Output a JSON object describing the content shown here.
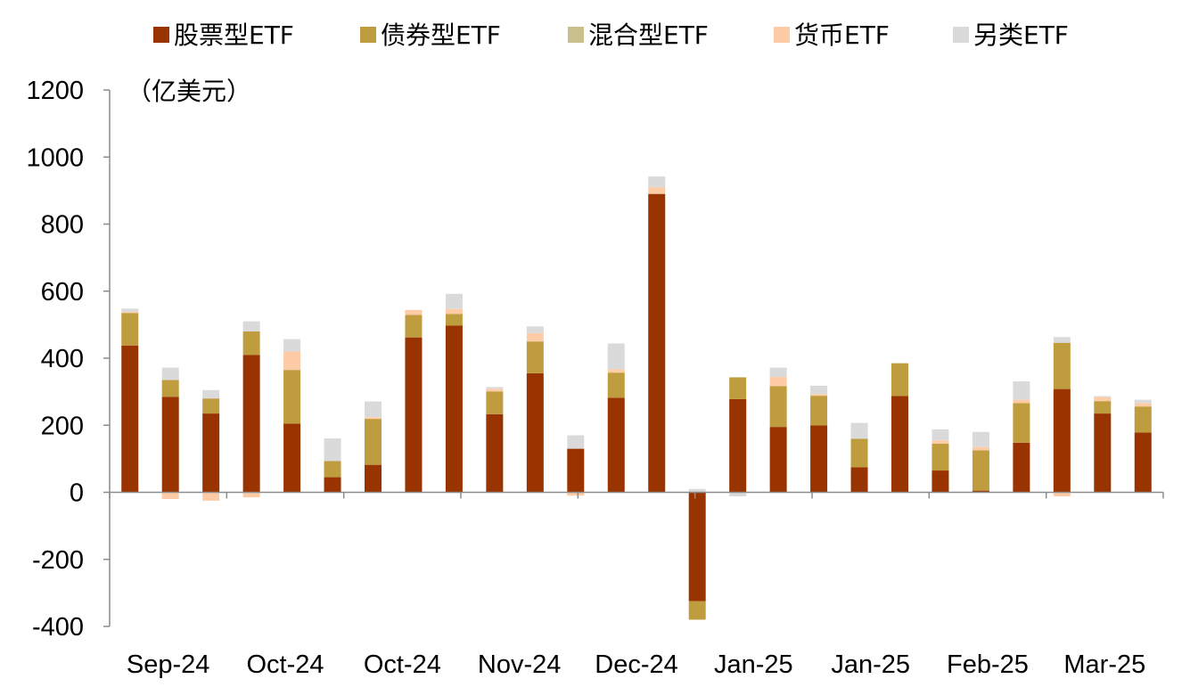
{
  "chart_data": {
    "type": "bar",
    "stacked": true,
    "unit_label": "（亿美元）",
    "ylim": [
      -400,
      1200
    ],
    "y_ticks": [
      -400,
      -200,
      0,
      200,
      400,
      600,
      800,
      1000,
      1200
    ],
    "x_tick_labels": [
      "Sep-24",
      "Oct-24",
      "Oct-24",
      "Nov-24",
      "Dec-24",
      "Jan-25",
      "Jan-25",
      "Feb-25",
      "Mar-25"
    ],
    "legend_position": "top",
    "grid": false,
    "colors": {
      "股票型ETF": "#993300",
      "债券型ETF": "#bf9c3e",
      "混合型ETF": "#c9c08d",
      "货币ETF": "#fdcca6",
      "另类ETF": "#dadada"
    },
    "series": [
      {
        "name": "股票型ETF",
        "values": [
          438,
          285,
          235,
          410,
          205,
          45,
          82,
          462,
          497,
          233,
          355,
          130,
          282,
          890,
          -325,
          278,
          195,
          200,
          75,
          287,
          65,
          5,
          148,
          308,
          235,
          178
        ]
      },
      {
        "name": "债券型ETF",
        "values": [
          97,
          50,
          45,
          70,
          160,
          48,
          137,
          67,
          35,
          68,
          95,
          0,
          75,
          0,
          -55,
          65,
          122,
          88,
          85,
          98,
          80,
          120,
          118,
          138,
          37,
          78
        ]
      },
      {
        "name": "混合型ETF",
        "values": [
          0,
          0,
          0,
          0,
          0,
          0,
          0,
          0,
          0,
          0,
          0,
          0,
          0,
          0,
          0,
          0,
          0,
          0,
          0,
          0,
          0,
          0,
          0,
          0,
          0,
          0
        ]
      },
      {
        "name": "货币ETF",
        "values": [
          3,
          -20,
          -25,
          -15,
          55,
          0,
          5,
          15,
          15,
          8,
          25,
          -10,
          10,
          20,
          0,
          0,
          27,
          5,
          0,
          0,
          10,
          10,
          10,
          -12,
          12,
          10
        ]
      },
      {
        "name": "另类ETF",
        "values": [
          10,
          37,
          25,
          30,
          37,
          68,
          47,
          0,
          45,
          5,
          20,
          40,
          77,
          32,
          10,
          -12,
          28,
          25,
          47,
          0,
          33,
          45,
          55,
          17,
          3,
          10
        ]
      }
    ]
  }
}
